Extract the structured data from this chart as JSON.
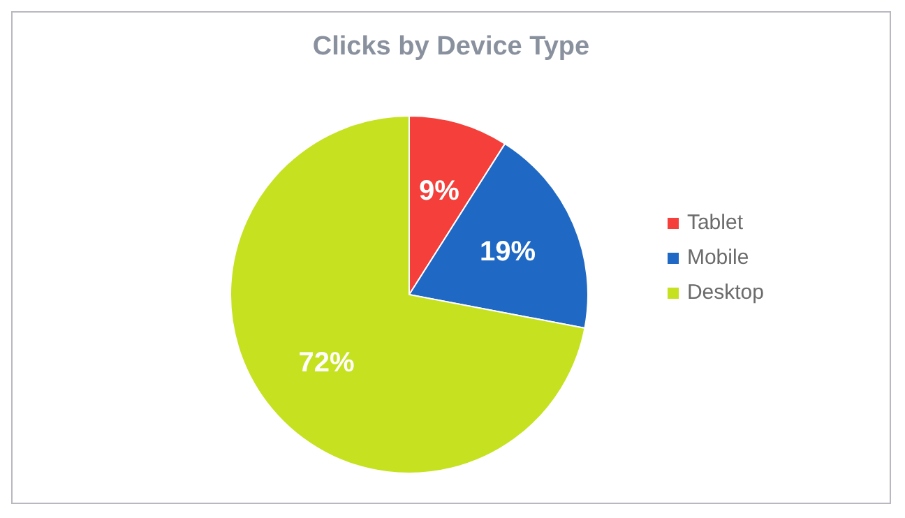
{
  "chart_data": {
    "type": "pie",
    "title": "Clicks by Device Type",
    "categories": [
      "Tablet",
      "Mobile",
      "Desktop"
    ],
    "values": [
      9,
      19,
      72
    ],
    "colors": [
      "#f53f3a",
      "#1f68c4",
      "#c6e11f"
    ],
    "value_labels": [
      "9%",
      "19%",
      "72%"
    ],
    "legend": "right"
  }
}
